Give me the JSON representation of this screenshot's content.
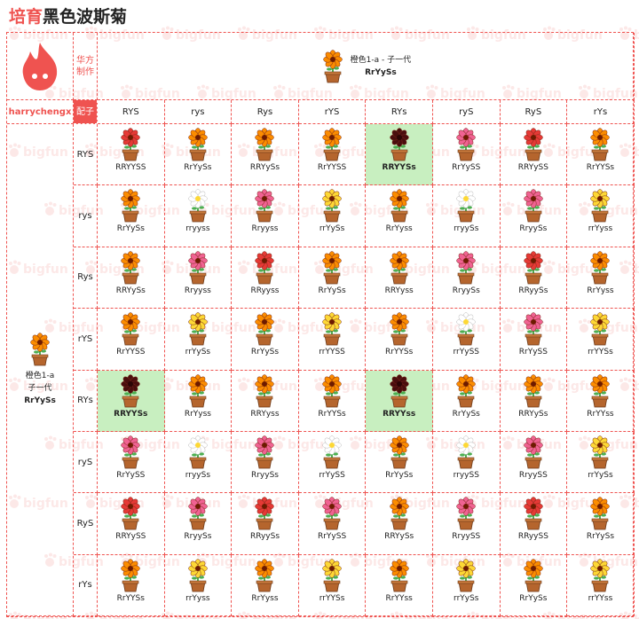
{
  "title": {
    "part1": "培育",
    "part2": "黑色波斯菊"
  },
  "watermark": "bigfun",
  "header": {
    "recipe_label": "华方制作",
    "author": "harrychengx",
    "gamete_label": "配子",
    "parent_top": {
      "name": "橙色1-a - 子一代",
      "genotype": "RrYySs",
      "color": "orange"
    },
    "parent_left": {
      "name_line1": "橙色1-a",
      "name_line2": "子一代",
      "genotype": "RrYySs",
      "color": "orange"
    }
  },
  "columns": [
    "RYS",
    "rys",
    "Rys",
    "rYS",
    "RYs",
    "ryS",
    "RyS",
    "rYs"
  ],
  "rows": [
    {
      "gamete": "RYS",
      "cells": [
        {
          "color": "red",
          "genotype": "RRYYSS"
        },
        {
          "color": "orange",
          "genotype": "RrYySs"
        },
        {
          "color": "orange",
          "genotype": "RRYySs"
        },
        {
          "color": "orange",
          "genotype": "RrYYSS"
        },
        {
          "color": "black",
          "genotype": "RRYYSs",
          "highlight": true
        },
        {
          "color": "pink",
          "genotype": "RrYySS"
        },
        {
          "color": "red",
          "genotype": "RRYySS"
        },
        {
          "color": "orange",
          "genotype": "RrYYSs"
        }
      ]
    },
    {
      "gamete": "rys",
      "cells": [
        {
          "color": "orange",
          "genotype": "RrYySs"
        },
        {
          "color": "white",
          "genotype": "rryyss"
        },
        {
          "color": "pink",
          "genotype": "Rryyss"
        },
        {
          "color": "yellow",
          "genotype": "rrYySs"
        },
        {
          "color": "orange",
          "genotype": "RrYyss"
        },
        {
          "color": "white",
          "genotype": "rryySs"
        },
        {
          "color": "pink",
          "genotype": "RryySs"
        },
        {
          "color": "yellow",
          "genotype": "rrYyss"
        }
      ]
    },
    {
      "gamete": "Rys",
      "cells": [
        {
          "color": "orange",
          "genotype": "RRYySs"
        },
        {
          "color": "pink",
          "genotype": "Rryyss"
        },
        {
          "color": "red",
          "genotype": "RRyyss"
        },
        {
          "color": "orange",
          "genotype": "RrYySs"
        },
        {
          "color": "orange",
          "genotype": "RRYyss"
        },
        {
          "color": "pink",
          "genotype": "RryySs"
        },
        {
          "color": "red",
          "genotype": "RRyySs"
        },
        {
          "color": "orange",
          "genotype": "RrYyss"
        }
      ]
    },
    {
      "gamete": "rYS",
      "cells": [
        {
          "color": "orange",
          "genotype": "RrYYSS"
        },
        {
          "color": "yellow",
          "genotype": "rrYySs"
        },
        {
          "color": "orange",
          "genotype": "RrYySs"
        },
        {
          "color": "yellow",
          "genotype": "rrYYSS"
        },
        {
          "color": "orange",
          "genotype": "RrYYSs"
        },
        {
          "color": "white",
          "genotype": "rrYySS"
        },
        {
          "color": "pink",
          "genotype": "RrYySS"
        },
        {
          "color": "yellow",
          "genotype": "rrYYSs"
        }
      ]
    },
    {
      "gamete": "RYs",
      "cells": [
        {
          "color": "black",
          "genotype": "RRYYSs",
          "highlight": true
        },
        {
          "color": "orange",
          "genotype": "RrYyss"
        },
        {
          "color": "orange",
          "genotype": "RRYyss"
        },
        {
          "color": "orange",
          "genotype": "RrYYSs"
        },
        {
          "color": "black",
          "genotype": "RRYYss",
          "highlight": true
        },
        {
          "color": "orange",
          "genotype": "RrYySs"
        },
        {
          "color": "orange",
          "genotype": "RRYySs"
        },
        {
          "color": "orange",
          "genotype": "RrYYss"
        }
      ]
    },
    {
      "gamete": "ryS",
      "cells": [
        {
          "color": "pink",
          "genotype": "RrYySS"
        },
        {
          "color": "white",
          "genotype": "rryySs"
        },
        {
          "color": "pink",
          "genotype": "RryySs"
        },
        {
          "color": "white",
          "genotype": "rrYySS"
        },
        {
          "color": "orange",
          "genotype": "RrYySs"
        },
        {
          "color": "white",
          "genotype": "rryySS"
        },
        {
          "color": "pink",
          "genotype": "RryySS"
        },
        {
          "color": "yellow",
          "genotype": "rrYySs"
        }
      ]
    },
    {
      "gamete": "RyS",
      "cells": [
        {
          "color": "red",
          "genotype": "RRYySS"
        },
        {
          "color": "pink",
          "genotype": "RryySs"
        },
        {
          "color": "red",
          "genotype": "RRyySs"
        },
        {
          "color": "pink",
          "genotype": "RrYySS"
        },
        {
          "color": "orange",
          "genotype": "RRYySs"
        },
        {
          "color": "pink",
          "genotype": "RryySS"
        },
        {
          "color": "red",
          "genotype": "RRyySS"
        },
        {
          "color": "orange",
          "genotype": "RrYySs"
        }
      ]
    },
    {
      "gamete": "rYs",
      "cells": [
        {
          "color": "orange",
          "genotype": "RrYYSs"
        },
        {
          "color": "yellow",
          "genotype": "rrYyss"
        },
        {
          "color": "orange",
          "genotype": "RrYyss"
        },
        {
          "color": "yellow",
          "genotype": "rrYYSs"
        },
        {
          "color": "orange",
          "genotype": "RrYYss"
        },
        {
          "color": "yellow",
          "genotype": "rrYySs"
        },
        {
          "color": "orange",
          "genotype": "RrYySs"
        },
        {
          "color": "yellow",
          "genotype": "rrYYss"
        }
      ]
    }
  ],
  "colors": {
    "red": "#e53935",
    "orange": "#fb8c00",
    "yellow": "#fdd835",
    "pink": "#f06292",
    "white": "#ffffff",
    "black": "#4a0e0e",
    "accent": "#ef5350",
    "highlight": "#c8efc0"
  }
}
